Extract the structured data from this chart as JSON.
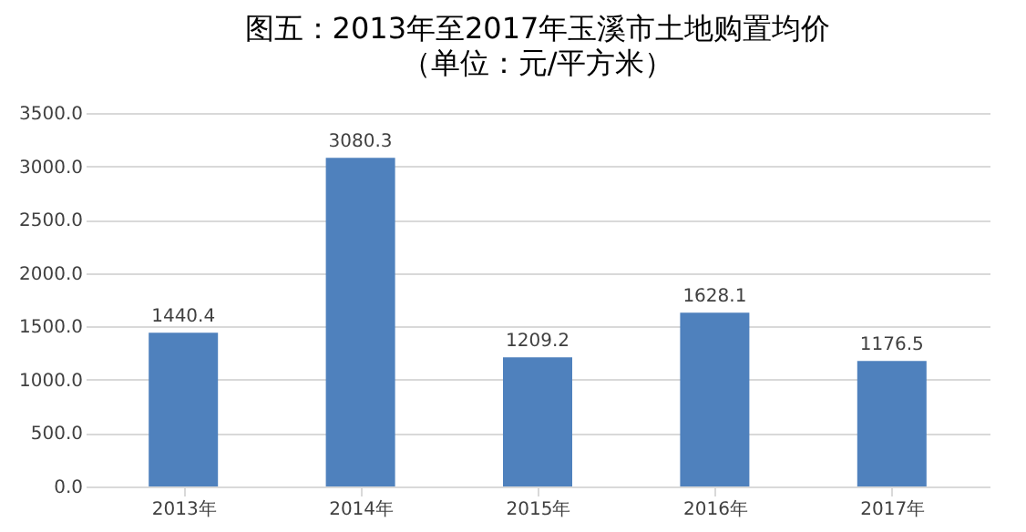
{
  "chart_data": {
    "type": "bar",
    "title": "图五：2013年至2017年玉溪市土地购置均价",
    "subtitle": "（单位：元/平方米）",
    "categories": [
      "2013年",
      "2014年",
      "2015年",
      "2016年",
      "2017年"
    ],
    "values": [
      1440.4,
      3080.3,
      1209.2,
      1628.1,
      1176.5
    ],
    "color": "#4f81bd",
    "ylim": [
      0,
      3500
    ],
    "yticks": [
      {
        "value": 0,
        "label": "0.0"
      },
      {
        "value": 500,
        "label": "500.0"
      },
      {
        "value": 1000,
        "label": "1000.0"
      },
      {
        "value": 1500,
        "label": "1500.0"
      },
      {
        "value": 2000,
        "label": "2000.0"
      },
      {
        "value": 2500,
        "label": "2500.0"
      },
      {
        "value": 3000,
        "label": "3000.0"
      },
      {
        "value": 3500,
        "label": "3500.0"
      }
    ],
    "grid": "y",
    "data_labels": true
  }
}
